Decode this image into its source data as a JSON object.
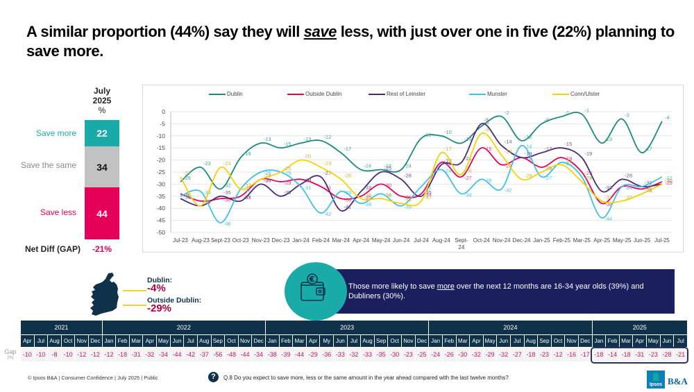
{
  "title": {
    "part1": "A similar proportion (44%) say they will ",
    "emph": "save",
    "part2": " less, with just over one in five (22%) planning to save more."
  },
  "summary": {
    "header": [
      "July",
      "2025",
      "%"
    ],
    "rows": [
      {
        "label": "Save more",
        "value": "22",
        "color": "#1aaba8"
      },
      {
        "label": "Save the same",
        "value": "34",
        "color": "#c2c2c2"
      },
      {
        "label": "Save less",
        "value": "44",
        "color": "#e5005a"
      }
    ],
    "gap_label": "Net Diff (GAP)",
    "gap_value": "-21%"
  },
  "chart_data": {
    "type": "line",
    "title": "",
    "xlabel": "",
    "ylabel": "",
    "ylim": [
      -50,
      0
    ],
    "yticks": [
      0,
      -5,
      -10,
      -15,
      -20,
      -25,
      -30,
      -35,
      -40,
      -45,
      -50
    ],
    "grid": true,
    "legend_position": "top",
    "categories": [
      "Jul-23",
      "Aug-23",
      "Sept-23",
      "Oct-23",
      "Nov-23",
      "Dec-23",
      "Jan-24",
      "Feb-24",
      "Mar-24",
      "Apr-24",
      "May-24",
      "Jun-24",
      "Jul-24",
      "Aug-24",
      "Sept-24",
      "Oct-24",
      "Nov-24",
      "Dec-24",
      "Jan-25",
      "Feb-25",
      "Mar-25",
      "Apr-25",
      "May-25",
      "Jun-25",
      "Jul-25"
    ],
    "series": [
      {
        "name": "Dublin",
        "color": "#1a8a80",
        "values": [
          -29,
          -23,
          -32,
          -19,
          -13,
          -15,
          -13,
          -12,
          -17,
          -24,
          -24,
          -24,
          -11,
          -10,
          -13,
          -6,
          -2,
          -12,
          -5,
          -2,
          -1,
          -13,
          -3,
          -17,
          -4
        ]
      },
      {
        "name": "Outside Dublin",
        "color": "#e5005a",
        "values": [
          -34,
          -37,
          -36,
          -35,
          -28,
          -29,
          -28,
          -31,
          -36,
          -35,
          -30,
          -35,
          -34,
          -21,
          -27,
          -15,
          -22,
          -19,
          -23,
          -19,
          -25,
          -38,
          -31,
          -32,
          -29
        ]
      },
      {
        "name": "Rest of Leinster",
        "color": "#4b2a7b",
        "values": [
          -36,
          -39,
          -35,
          -37,
          -30,
          -35,
          -30,
          -27,
          -41,
          -33,
          -25,
          -28,
          -35,
          -22,
          -21,
          -5,
          -14,
          -19,
          -17,
          -15,
          -19,
          -33,
          -28,
          -31,
          -30
        ]
      },
      {
        "name": "Munster",
        "color": "#3fc0e8",
        "values": [
          -35,
          -33,
          -46,
          -32,
          -25,
          -25,
          -31,
          -42,
          -33,
          -38,
          -34,
          -39,
          -31,
          -24,
          -34,
          -28,
          -32,
          -14,
          -27,
          -21,
          -27,
          -44,
          -31,
          -31,
          -27
        ]
      },
      {
        "name": "Conn/Ulster",
        "color": "#f7d200",
        "values": [
          -27,
          -39,
          -23,
          -32,
          -28,
          -25,
          -20,
          -23,
          -28,
          -36,
          -36,
          -38,
          -37,
          -17,
          -26,
          -9,
          -18,
          -28,
          -25,
          -22,
          -29,
          -37,
          -37,
          -34,
          -30
        ]
      }
    ]
  },
  "ireland": {
    "dublin_label": "Dublin:",
    "dublin_value": "-4%",
    "outside_label": "Outside Dublin:",
    "outside_value": "-29%"
  },
  "callout": {
    "icon": "wallet-euro-icon",
    "text_before": "Those more likely to save ",
    "text_emph": "more",
    "text_after": " over the next 12 months are 16-34 year olds (39%) and Dubliners (30%)."
  },
  "gap_table": {
    "row_label": "Gap",
    "row_unit": "(%)",
    "years": [
      {
        "year": "2021",
        "months": [
          "Apr",
          "Jul",
          "Aug",
          "Oct",
          "Nov",
          "Dec"
        ],
        "values": [
          "-10",
          "-10",
          "-8",
          "-10",
          "-12",
          "-12"
        ]
      },
      {
        "year": "2022",
        "months": [
          "Jan",
          "Feb",
          "Mar",
          "Apr",
          "May",
          "Jun",
          "Jul",
          "Aug",
          "Sep",
          "Oct",
          "Nov",
          "Dec"
        ],
        "values": [
          "-12",
          "-18",
          "-31",
          "-32",
          "-34",
          "-44",
          "-42",
          "-37",
          "-56",
          "-48",
          "-44",
          "-34"
        ]
      },
      {
        "year": "2023",
        "months": [
          "Jan",
          "Feb",
          "Mar",
          "Apr",
          "My",
          "Jun",
          "Jul",
          "Aug",
          "Sep",
          "Oct",
          "Nov",
          "Dec"
        ],
        "values": [
          "-38",
          "-39",
          "-44",
          "-29",
          "-36",
          "-33",
          "-32",
          "-33",
          "-35",
          "-30",
          "-23",
          "-25"
        ]
      },
      {
        "year": "2024",
        "months": [
          "Jan",
          "Feb",
          "Mar",
          "Apr",
          "May",
          "Jun",
          "Jul",
          "Aug",
          "Sep",
          "Oct",
          "Nov",
          "Dec"
        ],
        "values": [
          "-24",
          "-26",
          "-30",
          "-32",
          "-29",
          "-32",
          "-27",
          "-18",
          "-23",
          "-12",
          "-16",
          "-17"
        ]
      },
      {
        "year": "2025",
        "months": [
          "Jan",
          "Feb",
          "Mar",
          "Apr",
          "May",
          "Jun",
          "Jul"
        ],
        "values": [
          "-18",
          "-14",
          "-18",
          "-31",
          "-23",
          "-28",
          "-21"
        ]
      }
    ]
  },
  "footer": {
    "copyright": "© Ipsos B&A | Consumer Confidence | July 2025 | Public",
    "question_icon": "?",
    "question": "Q.8 Do you expect to save more, less or the same amount in the year ahead compared with the last twelve months?",
    "logo_ipsos": "Ipsos",
    "logo_ba": "B&A"
  }
}
